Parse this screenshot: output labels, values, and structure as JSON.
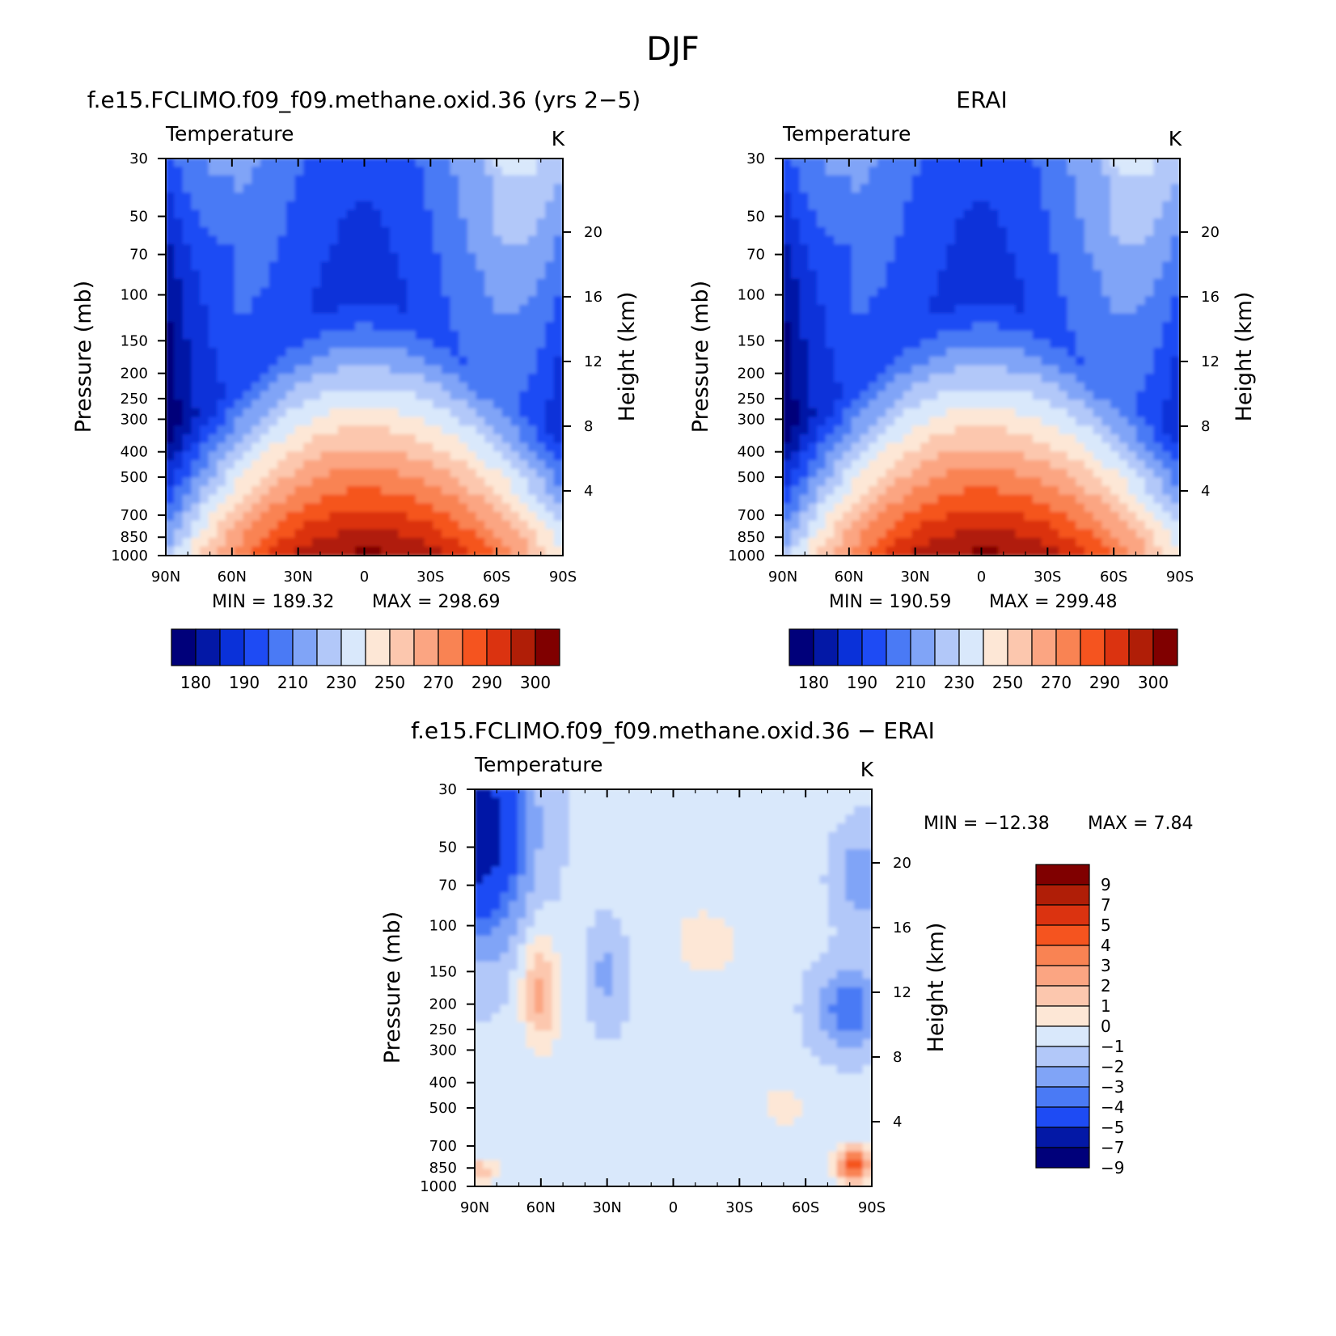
{
  "figure": {
    "season_title": "DJF"
  },
  "colors": {
    "temp_levels": [
      "#00007a",
      "#0318a6",
      "#0a31d9",
      "#1e4bf4",
      "#4a7af5",
      "#80a4f7",
      "#b2c8f9",
      "#d9e8fb",
      "#fde7d6",
      "#fcc7ae",
      "#fba582",
      "#f98353",
      "#f5541f",
      "#db3310",
      "#b01e07",
      "#800000"
    ],
    "diff_levels": [
      "#00007a",
      "#0318a6",
      "#1e4bf4",
      "#4a7af5",
      "#80a4f7",
      "#b2c8f9",
      "#d9e8fb",
      "#fde7d6",
      "#fcc7ae",
      "#fba582",
      "#f98353",
      "#f5541f",
      "#db3310",
      "#b01e07",
      "#800000"
    ]
  },
  "chart_data": [
    {
      "id": "model",
      "type": "heatmap",
      "title": "f.e15.FCLIMO.f09_f09.methane.oxid.36 (yrs 2−5)",
      "variable": "Temperature",
      "units": "K",
      "xlabel": "",
      "ylabel": "Pressure (mb)",
      "ylabel_right": "Height (km)",
      "x_ticks": [
        "90N",
        "60N",
        "30N",
        "0",
        "30S",
        "60S",
        "90S"
      ],
      "y_ticks": [
        "30",
        "50",
        "70",
        "100",
        "150",
        "200",
        "250",
        "300",
        "400",
        "500",
        "700",
        "850",
        "1000"
      ],
      "height_ticks": [
        "20",
        "16",
        "12",
        "8",
        "4"
      ],
      "y_scale": "log",
      "ylim": [
        1000,
        30
      ],
      "xlim": [
        90,
        -90
      ],
      "min_label": "MIN = 189.32",
      "max_label": "MAX = 298.69",
      "min": 189.32,
      "max": 298.69,
      "colorbar_labels": [
        "180",
        "190",
        "210",
        "230",
        "250",
        "270",
        "290",
        "300"
      ]
    },
    {
      "id": "obs",
      "type": "heatmap",
      "title": "ERAI",
      "variable": "Temperature",
      "units": "K",
      "xlabel": "",
      "ylabel": "Pressure (mb)",
      "ylabel_right": "Height (km)",
      "x_ticks": [
        "90N",
        "60N",
        "30N",
        "0",
        "30S",
        "60S",
        "90S"
      ],
      "y_ticks": [
        "30",
        "50",
        "70",
        "100",
        "150",
        "200",
        "250",
        "300",
        "400",
        "500",
        "700",
        "850",
        "1000"
      ],
      "height_ticks": [
        "20",
        "16",
        "12",
        "8",
        "4"
      ],
      "y_scale": "log",
      "ylim": [
        1000,
        30
      ],
      "xlim": [
        90,
        -90
      ],
      "min_label": "MIN = 190.59",
      "max_label": "MAX = 299.48",
      "min": 190.59,
      "max": 299.48,
      "colorbar_labels": [
        "180",
        "190",
        "210",
        "230",
        "250",
        "270",
        "290",
        "300"
      ]
    },
    {
      "id": "diff",
      "type": "heatmap",
      "title": "f.e15.FCLIMO.f09_f09.methane.oxid.36 − ERAI",
      "variable": "Temperature",
      "units": "K",
      "xlabel": "",
      "ylabel": "Pressure (mb)",
      "ylabel_right": "Height (km)",
      "x_ticks": [
        "90N",
        "60N",
        "30N",
        "0",
        "30S",
        "60S",
        "90S"
      ],
      "y_ticks": [
        "30",
        "50",
        "70",
        "100",
        "150",
        "200",
        "250",
        "300",
        "400",
        "500",
        "700",
        "850",
        "1000"
      ],
      "height_ticks": [
        "20",
        "16",
        "12",
        "8",
        "4"
      ],
      "y_scale": "log",
      "ylim": [
        1000,
        30
      ],
      "xlim": [
        90,
        -90
      ],
      "min_label": "MIN = −12.38",
      "max_label": "MAX = 7.84",
      "min": -12.38,
      "max": 7.84,
      "colorbar_labels": [
        "9",
        "7",
        "5",
        "4",
        "3",
        "2",
        "1",
        "0",
        "−1",
        "−2",
        "−3",
        "−4",
        "−5",
        "−7",
        "−9"
      ]
    }
  ]
}
